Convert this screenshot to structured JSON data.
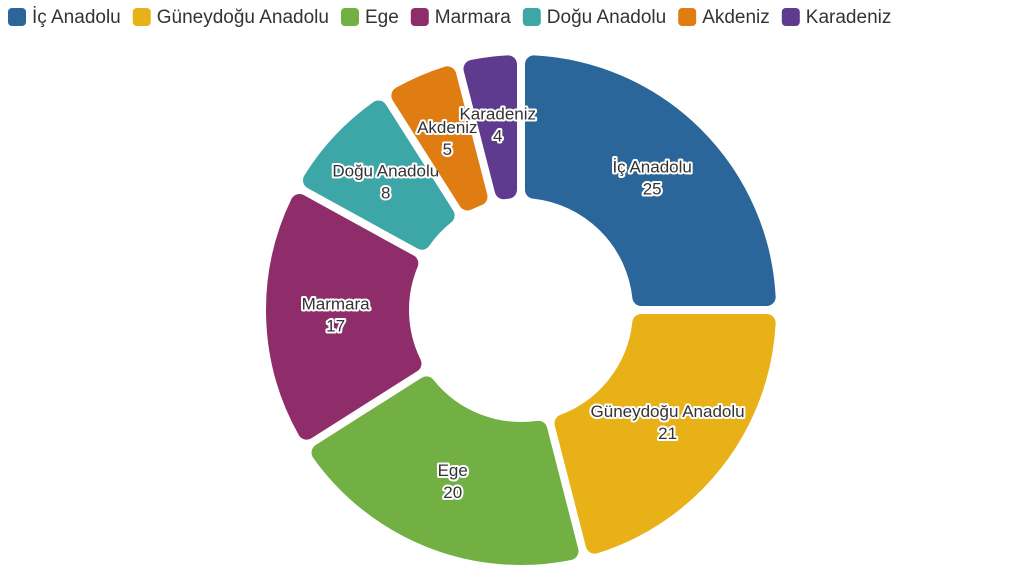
{
  "chart_data": {
    "type": "donut",
    "categories": [
      "İç Anadolu",
      "Güneydoğu Anadolu",
      "Ege",
      "Marmara",
      "Doğu Anadolu",
      "Akdeniz",
      "Karadeniz"
    ],
    "values": [
      25,
      21,
      20,
      17,
      8,
      5,
      4
    ],
    "colors": [
      "#2a6699",
      "#e8b118",
      "#72b043",
      "#8f2d6b",
      "#3ca7a6",
      "#e07d12",
      "#5e3b8f"
    ],
    "legend": "top"
  }
}
